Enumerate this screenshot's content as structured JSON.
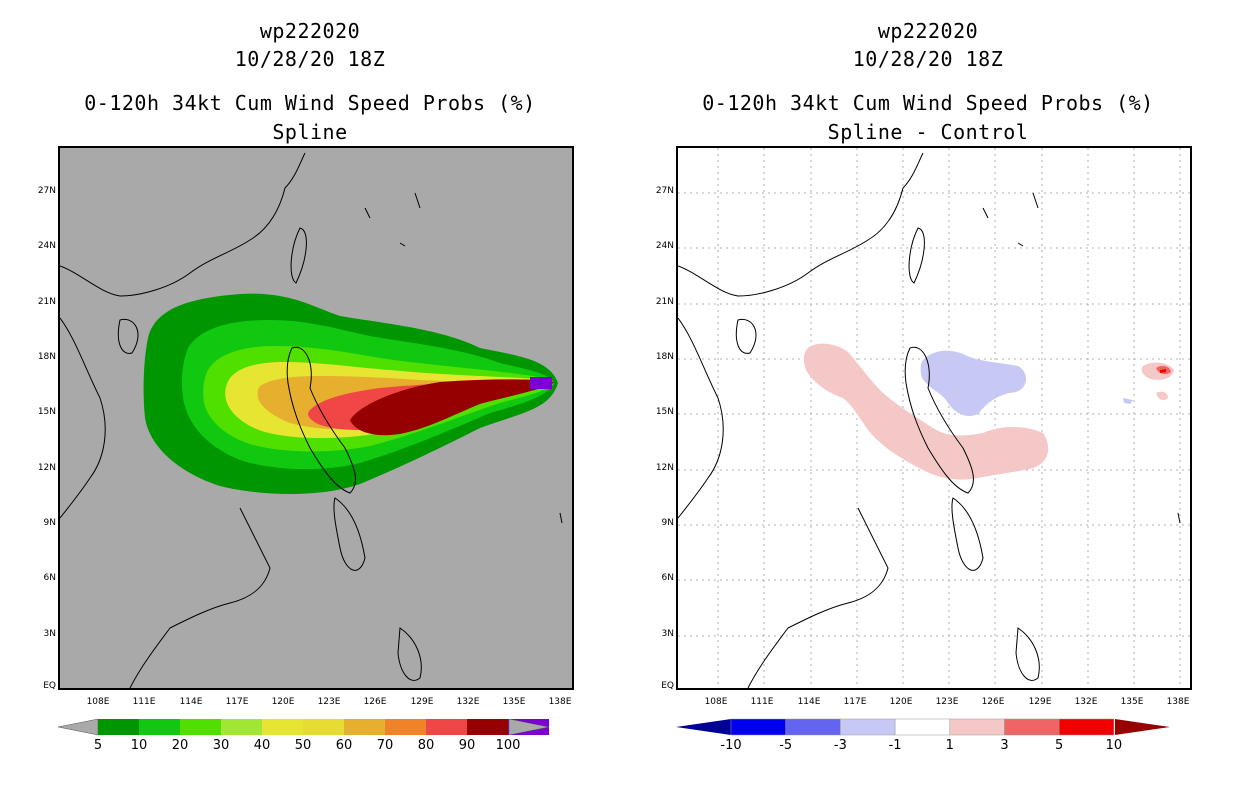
{
  "left": {
    "storm_id": "wp222020",
    "datetime": "10/28/20 18Z",
    "product": "0-120h 34kt Cum Wind Speed Probs (%)",
    "subtitle": "Spline",
    "colorbar_labels": [
      "5",
      "10",
      "20",
      "30",
      "40",
      "50",
      "60",
      "70",
      "80",
      "90",
      "100"
    ],
    "colorbar_colors": [
      "#009600",
      "#10c810",
      "#50e000",
      "#a0e632",
      "#e6e632",
      "#e6dc32",
      "#e6af2d",
      "#f08228",
      "#f04646",
      "#960000",
      "#7d00d2"
    ],
    "background_color": "#a9a9a9"
  },
  "right": {
    "storm_id": "wp222020",
    "datetime": "10/28/20 18Z",
    "product": "0-120h 34kt Cum Wind Speed Probs (%)",
    "subtitle": "Spline - Control",
    "colorbar_labels": [
      "-10",
      "-5",
      "-3",
      "-1",
      "1",
      "3",
      "5",
      "10"
    ],
    "colorbar_colors": [
      "#000096",
      "#0000f0",
      "#6464f0",
      "#c8c8f5",
      "#ffffff",
      "#f5c8c8",
      "#f06464",
      "#f00000",
      "#960000"
    ]
  },
  "axes": {
    "lat_labels": [
      "27N",
      "24N",
      "21N",
      "18N",
      "15N",
      "12N",
      "9N",
      "6N",
      "3N",
      "EQ"
    ],
    "lon_labels": [
      "108E",
      "111E",
      "114E",
      "117E",
      "120E",
      "123E",
      "126E",
      "129E",
      "132E",
      "135E",
      "138E"
    ]
  }
}
